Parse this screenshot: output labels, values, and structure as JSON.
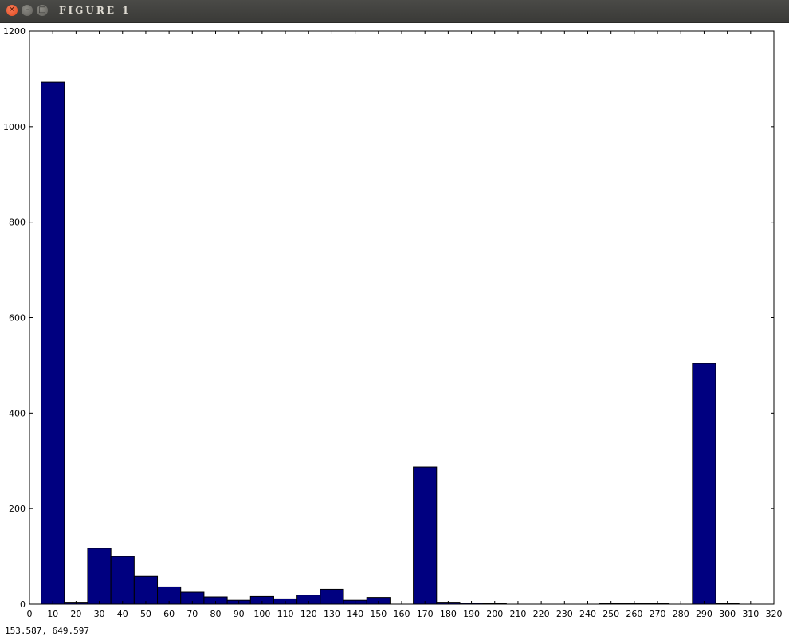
{
  "window": {
    "title": "FIGURE 1",
    "close_glyph": "✕",
    "minimize_glyph": "–",
    "maximize_glyph": "□"
  },
  "status": {
    "coords": "153.587,  649.597"
  },
  "colors": {
    "bar_fill": "#000080",
    "bar_stroke": "#000000"
  },
  "chart_data": {
    "type": "bar",
    "title": "",
    "xlabel": "",
    "ylabel": "",
    "xlim": [
      0,
      320
    ],
    "ylim": [
      0,
      1200
    ],
    "bin_width": 10,
    "xticks": [
      0,
      10,
      20,
      30,
      40,
      50,
      60,
      70,
      80,
      90,
      100,
      110,
      120,
      130,
      140,
      150,
      160,
      170,
      180,
      190,
      200,
      210,
      220,
      230,
      240,
      250,
      260,
      270,
      280,
      290,
      300,
      310,
      320
    ],
    "yticks": [
      0,
      200,
      400,
      600,
      800,
      1000,
      1200
    ],
    "bin_centers": [
      10,
      20,
      30,
      40,
      50,
      60,
      70,
      80,
      90,
      100,
      110,
      120,
      130,
      140,
      150,
      170,
      180,
      190,
      200,
      250,
      260,
      270,
      290,
      300
    ],
    "values": [
      1093,
      4,
      117,
      100,
      58,
      36,
      25,
      15,
      8,
      16,
      11,
      19,
      31,
      8,
      14,
      287,
      4,
      2,
      1,
      1,
      1,
      1,
      504,
      1
    ],
    "grid": false,
    "legend": "none"
  }
}
